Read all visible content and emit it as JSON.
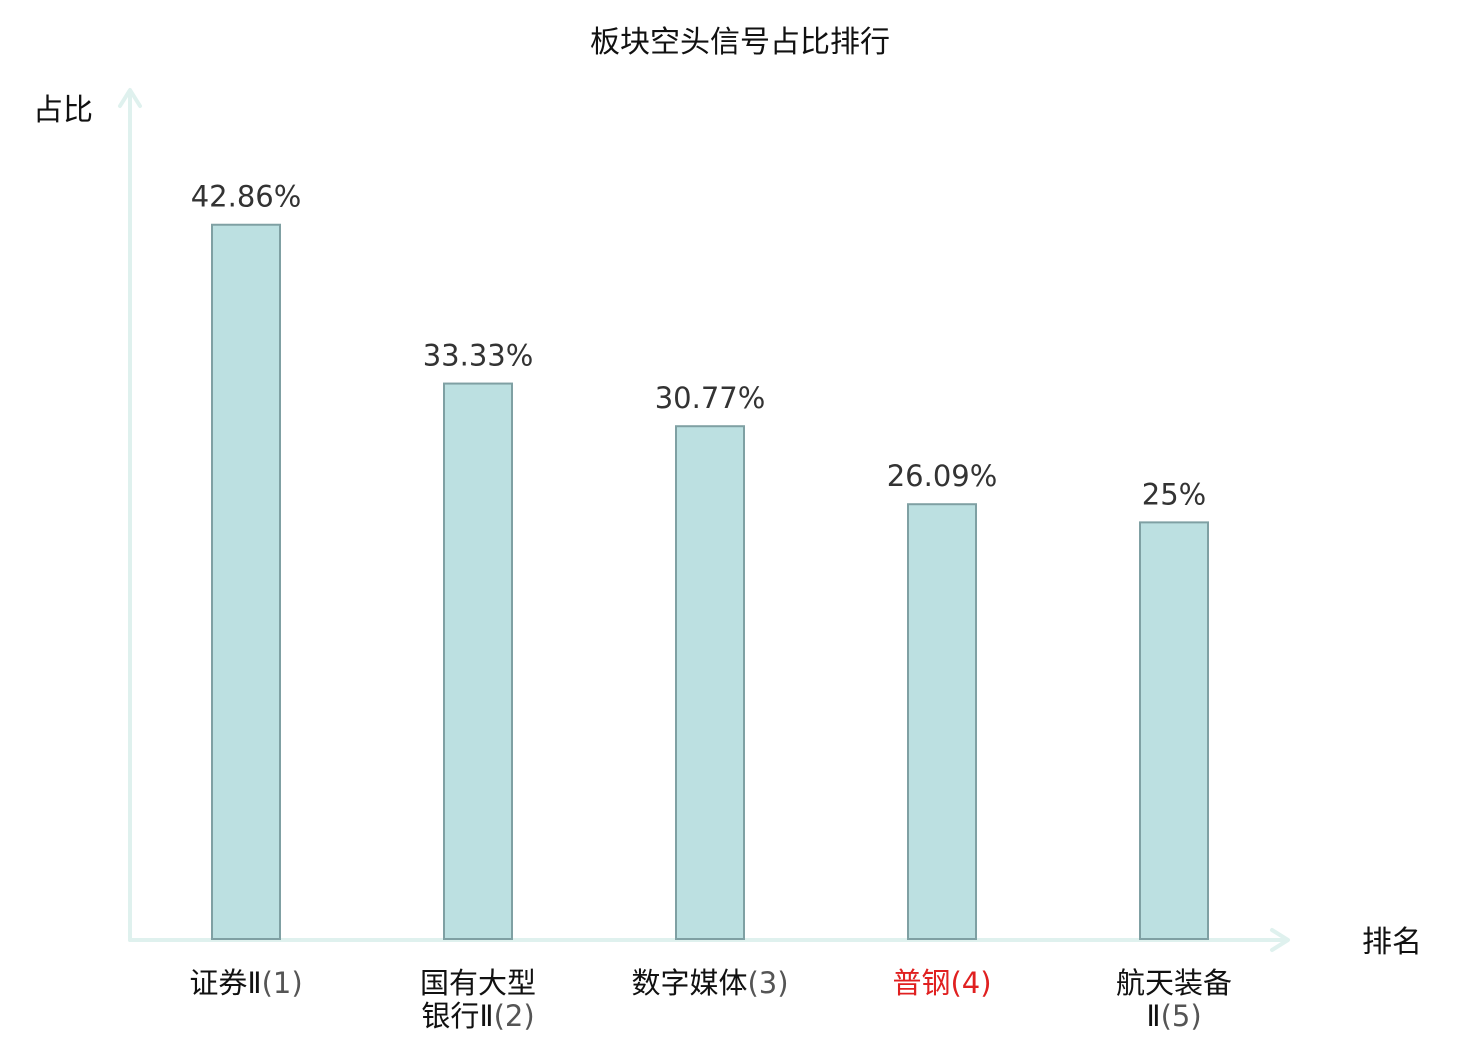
{
  "chart_data": {
    "type": "bar",
    "title": "板块空头信号占比排行",
    "ylabel": "占比",
    "xlabel": "排名",
    "grid": false,
    "legend": "none",
    "ylim": [
      0,
      50
    ],
    "categories": [
      {
        "name_lines": [
          "证券Ⅱ"
        ],
        "rank": "(1)",
        "highlight": false
      },
      {
        "name_lines": [
          "国有大型",
          "银行Ⅱ"
        ],
        "rank": "(2)",
        "highlight": false
      },
      {
        "name_lines": [
          "数字媒体"
        ],
        "rank": "(3)",
        "highlight": false
      },
      {
        "name_lines": [
          "普钢"
        ],
        "rank": "(4)",
        "highlight": true
      },
      {
        "name_lines": [
          "航天装备",
          "Ⅱ"
        ],
        "rank": "(5)",
        "highlight": false
      }
    ],
    "values": [
      42.86,
      33.33,
      30.77,
      26.09,
      25
    ],
    "value_labels": [
      "42.86%",
      "33.33%",
      "30.77%",
      "26.09%",
      "25%"
    ]
  },
  "colors": {
    "bar_fill": "#bce0e1",
    "bar_stroke": "#7fa0a3",
    "axis": "#dff1ee",
    "highlight_text": "#e02020",
    "text": "#111111",
    "value_text": "#333333"
  }
}
